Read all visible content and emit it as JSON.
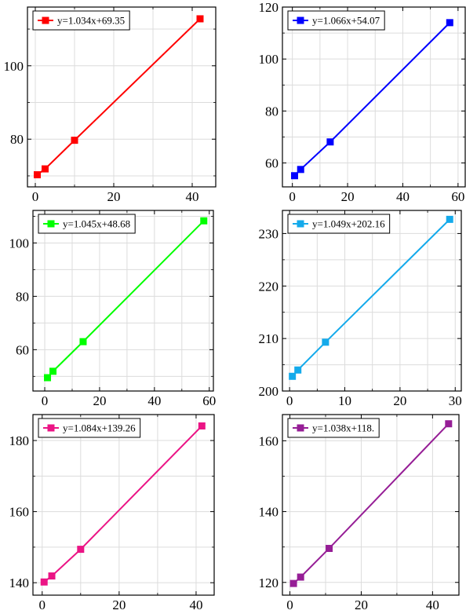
{
  "chart_data": [
    {
      "type": "line",
      "series": [
        {
          "name": "y=1.034x+69.35",
          "color": "#ff0000",
          "x": [
            0.5,
            2.5,
            10,
            42
          ],
          "y": [
            70.3,
            71.9,
            79.7,
            112.8
          ]
        }
      ],
      "xlim": [
        -2,
        46
      ],
      "ylim": [
        67,
        116
      ],
      "xticks": [
        0,
        20,
        40
      ],
      "yticks": [
        80,
        100
      ],
      "xminor": [
        10,
        30
      ],
      "yminor": [
        70,
        90,
        110
      ],
      "grid": true,
      "legend_position": "top-left"
    },
    {
      "type": "line",
      "series": [
        {
          "name": "y=1.066x+54.07",
          "color": "#0000ff",
          "x": [
            0.8,
            3,
            13.7,
            57
          ],
          "y": [
            55.1,
            57.5,
            68.1,
            114
          ]
        }
      ],
      "xlim": [
        -3.6,
        62.6
      ],
      "ylim": [
        50.8,
        120
      ],
      "xticks": [
        0,
        20,
        40,
        60
      ],
      "yticks": [
        60,
        80,
        100,
        120
      ],
      "xminor": [
        10,
        30,
        50
      ],
      "yminor": [
        70,
        90,
        110
      ],
      "grid": true,
      "legend_position": "top-left"
    },
    {
      "type": "line",
      "series": [
        {
          "name": "y=1.045x+48.68",
          "color": "#00ff00",
          "x": [
            1,
            3,
            14,
            58
          ],
          "y": [
            49.5,
            51.9,
            63,
            108.3
          ]
        }
      ],
      "xlim": [
        -4.3,
        61.5
      ],
      "ylim": [
        44.5,
        112.2
      ],
      "xticks": [
        0,
        20,
        40,
        60
      ],
      "yticks": [
        60,
        80,
        100
      ],
      "xminor": [
        10,
        30,
        50
      ],
      "yminor": [
        50,
        70,
        90,
        110
      ],
      "grid": true,
      "legend_position": "top-left"
    },
    {
      "type": "line",
      "series": [
        {
          "name": "y=1.049x+202.16",
          "color": "#14aaeb",
          "x": [
            0.5,
            1.5,
            6.5,
            29
          ],
          "y": [
            202.8,
            204,
            209.3,
            232.7
          ]
        }
      ],
      "xlim": [
        -1.3,
        31.1
      ],
      "ylim": [
        200,
        234.4
      ],
      "xticks": [
        0,
        10,
        20,
        30
      ],
      "yticks": [
        200,
        210,
        220,
        230
      ],
      "xminor": [
        5,
        15,
        25
      ],
      "yminor": [
        205,
        215,
        225
      ],
      "grid": true,
      "legend_position": "top-left"
    },
    {
      "type": "line",
      "series": [
        {
          "name": "y=1.084x+139.26",
          "color": "#eb1485",
          "x": [
            0.5,
            2.5,
            10,
            41.5
          ],
          "y": [
            140.2,
            141.9,
            149.4,
            184.1
          ]
        }
      ],
      "xlim": [
        -2.4,
        44.7
      ],
      "ylim": [
        136.5,
        187.3
      ],
      "xticks": [
        0,
        20,
        40
      ],
      "yticks": [
        140,
        160,
        180
      ],
      "xminor": [
        10,
        30
      ],
      "yminor": [
        150,
        170
      ],
      "grid": true,
      "legend_position": "top-left"
    },
    {
      "type": "line",
      "series": [
        {
          "name": "y=1.038x+118.",
          "color": "#961e96",
          "x": [
            1,
            3,
            11,
            44.5
          ],
          "y": [
            119.7,
            121.5,
            129.6,
            164.8
          ]
        }
      ],
      "xlim": [
        -2.1,
        47.4
      ],
      "ylim": [
        116.4,
        167.4
      ],
      "xticks": [
        0,
        20,
        40
      ],
      "yticks": [
        120,
        140,
        160
      ],
      "xminor": [
        10,
        30
      ],
      "yminor": [
        130,
        150
      ],
      "grid": true,
      "legend_position": "top-left"
    }
  ]
}
